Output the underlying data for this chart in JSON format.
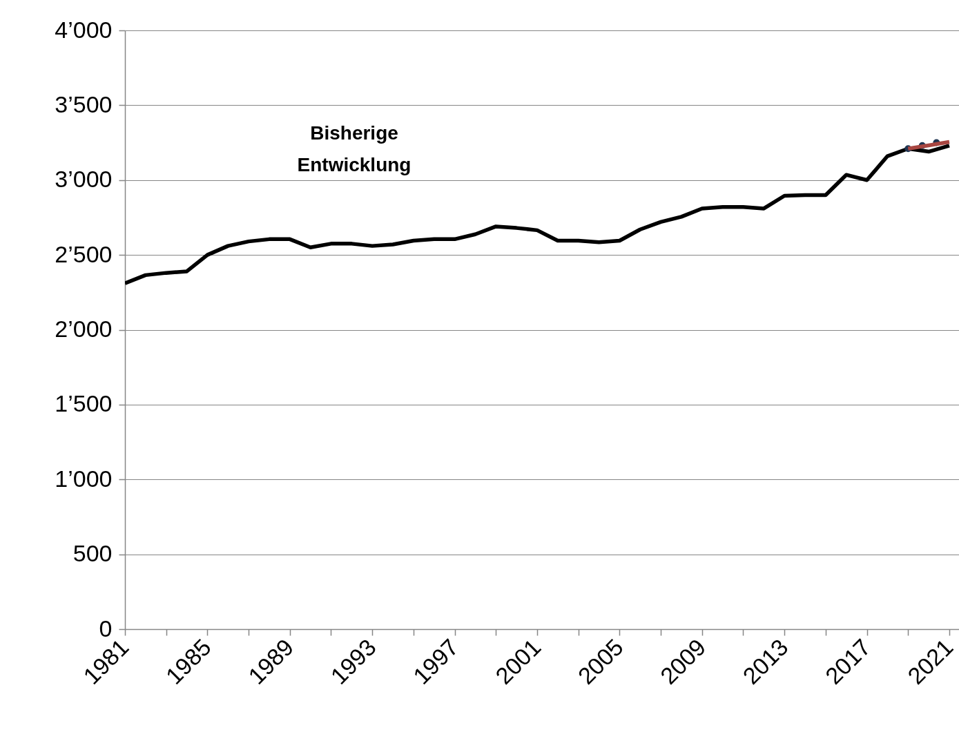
{
  "chart_data": {
    "type": "line",
    "x": [
      1981,
      1982,
      1983,
      1984,
      1985,
      1986,
      1987,
      1988,
      1989,
      1990,
      1991,
      1992,
      1993,
      1994,
      1995,
      1996,
      1997,
      1998,
      1999,
      2000,
      2001,
      2002,
      2003,
      2004,
      2005,
      2006,
      2007,
      2008,
      2009,
      2010,
      2011,
      2012,
      2013,
      2014,
      2015,
      2016,
      2017,
      2018,
      2019,
      2020,
      2021
    ],
    "series": [
      {
        "color": "#000000",
        "line_style": "solid",
        "values": [
          2310,
          2365,
          2380,
          2390,
          2500,
          2560,
          2590,
          2605,
          2605,
          2550,
          2575,
          2575,
          2560,
          2570,
          2595,
          2605,
          2605,
          2638,
          2690,
          2680,
          2665,
          2595,
          2595,
          2585,
          2595,
          2670,
          2720,
          2755,
          2810,
          2820,
          2820,
          2810,
          2895,
          2900,
          2900,
          3035,
          3000,
          3160,
          3210,
          3190,
          3230
        ]
      },
      {
        "color": "#1f3552",
        "line_style": "dotted",
        "values": [
          null,
          null,
          null,
          null,
          null,
          null,
          null,
          null,
          null,
          null,
          null,
          null,
          null,
          null,
          null,
          null,
          null,
          null,
          null,
          null,
          null,
          null,
          null,
          null,
          null,
          null,
          null,
          null,
          null,
          null,
          null,
          null,
          null,
          null,
          null,
          null,
          null,
          null,
          3210,
          3240,
          3267
        ]
      },
      {
        "color": "#a84641",
        "line_style": "solid",
        "values": [
          null,
          null,
          null,
          null,
          null,
          null,
          null,
          null,
          null,
          null,
          null,
          null,
          null,
          null,
          null,
          null,
          null,
          null,
          null,
          null,
          null,
          null,
          null,
          null,
          null,
          null,
          null,
          null,
          null,
          null,
          null,
          null,
          null,
          null,
          null,
          null,
          null,
          null,
          3210,
          3232,
          3255
        ]
      }
    ],
    "xlim": [
      1981,
      2021.47
    ],
    "xticks": [
      1981,
      {
        "value": 1983,
        "label": null
      },
      1985,
      {
        "value": 1987,
        "label": null
      },
      1989,
      {
        "value": 1991,
        "label": null
      },
      1993,
      {
        "value": 1995,
        "label": null
      },
      1997,
      {
        "value": 1999,
        "label": null
      },
      2001,
      {
        "value": 2003,
        "label": null
      },
      2005,
      {
        "value": 2007,
        "label": null
      },
      2009,
      {
        "value": 2011,
        "label": null
      },
      2013,
      {
        "value": 2015,
        "label": null
      },
      2017,
      {
        "value": 2019,
        "label": null
      },
      2021
    ],
    "ylim": [
      0,
      4000
    ],
    "yticks": [
      0,
      500,
      {
        "value": 1000,
        "label": "1’000"
      },
      {
        "value": 1500,
        "label": "1’500"
      },
      {
        "value": 2000,
        "label": "2’000"
      },
      {
        "value": 2500,
        "label": "2’500"
      },
      {
        "value": 3000,
        "label": "3’000"
      },
      {
        "value": 3500,
        "label": "3’500"
      },
      {
        "value": 4000,
        "label": "4’000"
      }
    ],
    "grid": "y",
    "marker": "none",
    "annotations": [
      "Bisherige Entwicklung"
    ]
  }
}
